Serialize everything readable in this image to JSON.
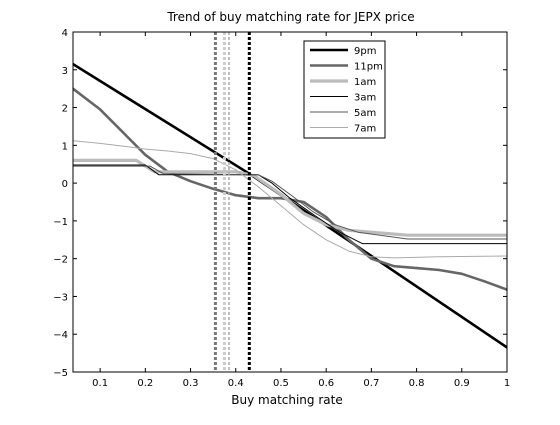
{
  "chart_data": {
    "type": "line",
    "title": "Trend of buy matching rate for JEPX price",
    "xlabel": "Buy matching rate",
    "ylabel": "",
    "xlim": [
      0.04,
      1.0
    ],
    "ylim": [
      -5,
      4
    ],
    "x_ticks": [
      0.1,
      0.2,
      0.3,
      0.4,
      0.5,
      0.6,
      0.7,
      0.8,
      0.9,
      1
    ],
    "x_tick_labels": [
      "0.1",
      "0.2",
      "0.3",
      "0.4",
      "0.5",
      "0.6",
      "0.7",
      "0.8",
      "0.9",
      "1"
    ],
    "y_ticks": [
      4,
      3,
      2,
      1,
      0,
      -1,
      -2,
      -3,
      -4,
      -5
    ],
    "y_tick_labels": [
      "4",
      "3",
      "2",
      "1",
      "0",
      "−1",
      "−2",
      "−3",
      "−4",
      "−5"
    ],
    "grid": false,
    "legend_position": "top-right",
    "series": [
      {
        "name": "9pm",
        "color": "#000000",
        "width": 2.6,
        "dash": "",
        "points": [
          [
            0.04,
            3.15
          ],
          [
            0.43,
            0.25
          ],
          [
            1.0,
            -4.35
          ]
        ]
      },
      {
        "name": "11pm",
        "color": "#666666",
        "width": 2.6,
        "dash": "",
        "points": [
          [
            0.04,
            2.5
          ],
          [
            0.1,
            1.95
          ],
          [
            0.15,
            1.35
          ],
          [
            0.2,
            0.75
          ],
          [
            0.25,
            0.3
          ],
          [
            0.3,
            0.05
          ],
          [
            0.35,
            -0.15
          ],
          [
            0.4,
            -0.32
          ],
          [
            0.45,
            -0.4
          ],
          [
            0.5,
            -0.4
          ],
          [
            0.55,
            -0.5
          ],
          [
            0.6,
            -0.9
          ],
          [
            0.65,
            -1.5
          ],
          [
            0.7,
            -2.0
          ],
          [
            0.75,
            -2.2
          ],
          [
            0.8,
            -2.25
          ],
          [
            0.85,
            -2.3
          ],
          [
            0.9,
            -2.4
          ],
          [
            0.95,
            -2.6
          ],
          [
            1.0,
            -2.82
          ]
        ]
      },
      {
        "name": "1am",
        "color": "#bbbbbb",
        "width": 3.2,
        "dash": "",
        "points": [
          [
            0.04,
            0.6
          ],
          [
            0.18,
            0.6
          ],
          [
            0.22,
            0.3
          ],
          [
            0.4,
            0.3
          ],
          [
            0.44,
            0.2
          ],
          [
            0.5,
            -0.3
          ],
          [
            0.55,
            -0.8
          ],
          [
            0.6,
            -1.1
          ],
          [
            0.65,
            -1.25
          ],
          [
            0.78,
            -1.38
          ],
          [
            1.0,
            -1.38
          ]
        ]
      },
      {
        "name": "3am",
        "color": "#000000",
        "width": 1.0,
        "dash": "",
        "points": [
          [
            0.04,
            0.48
          ],
          [
            0.2,
            0.48
          ],
          [
            0.23,
            0.22
          ],
          [
            0.45,
            0.22
          ],
          [
            0.48,
            0.0
          ],
          [
            0.52,
            -0.4
          ],
          [
            0.58,
            -0.9
          ],
          [
            0.63,
            -1.3
          ],
          [
            0.68,
            -1.6
          ],
          [
            1.0,
            -1.6
          ]
        ]
      },
      {
        "name": "5am",
        "color": "#555555",
        "width": 1.0,
        "dash": "",
        "points": [
          [
            0.04,
            0.45
          ],
          [
            0.21,
            0.45
          ],
          [
            0.24,
            0.25
          ],
          [
            0.45,
            0.22
          ],
          [
            0.48,
            0.05
          ],
          [
            0.52,
            -0.3
          ],
          [
            0.57,
            -0.75
          ],
          [
            0.62,
            -1.1
          ],
          [
            0.67,
            -1.3
          ],
          [
            0.78,
            -1.48
          ],
          [
            1.0,
            -1.48
          ]
        ]
      },
      {
        "name": "7am",
        "color": "#aaaaaa",
        "width": 1.0,
        "dash": "",
        "points": [
          [
            0.04,
            1.12
          ],
          [
            0.1,
            1.05
          ],
          [
            0.15,
            0.98
          ],
          [
            0.2,
            0.9
          ],
          [
            0.25,
            0.85
          ],
          [
            0.3,
            0.78
          ],
          [
            0.35,
            0.65
          ],
          [
            0.4,
            0.35
          ],
          [
            0.45,
            -0.1
          ],
          [
            0.5,
            -0.6
          ],
          [
            0.55,
            -1.1
          ],
          [
            0.6,
            -1.5
          ],
          [
            0.65,
            -1.8
          ],
          [
            0.7,
            -1.95
          ],
          [
            0.75,
            -1.98
          ],
          [
            0.85,
            -1.95
          ],
          [
            1.0,
            -1.93
          ]
        ]
      }
    ],
    "vlines": [
      {
        "x": 0.355,
        "color": "#777777",
        "width": 3.0,
        "dash": "3,2"
      },
      {
        "x": 0.375,
        "color": "#cccccc",
        "width": 3.0,
        "dash": "3,2"
      },
      {
        "x": 0.385,
        "color": "#aaaaaa",
        "width": 1.5,
        "dash": "3,2"
      },
      {
        "x": 0.43,
        "color": "#000000",
        "width": 3.0,
        "dash": "3,2"
      }
    ]
  }
}
